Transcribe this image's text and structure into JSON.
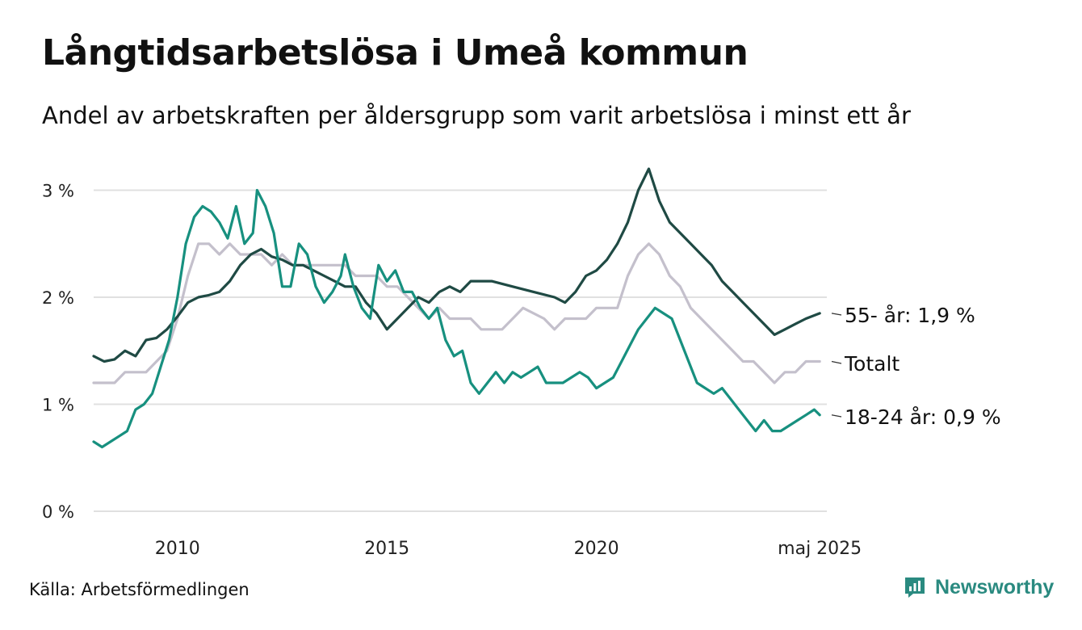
{
  "title": "Långtidsarbetslösa i Umeå kommun",
  "subtitle": "Andel av arbetskraften per åldersgrupp som varit arbetslösa i minst ett år",
  "source": "Källa: Arbetsförmedlingen",
  "brand": "Newsworthy",
  "colors": {
    "s55": "#1f4a44",
    "total": "#c4c0cc",
    "s1824": "#17907f",
    "grid": "#e0e0e0",
    "brand": "#2a8a80"
  },
  "chart_data": {
    "type": "line",
    "xlim": [
      2008.0,
      2025.5
    ],
    "ylim": [
      0,
      3.2
    ],
    "y_ticks": [
      {
        "value": 0,
        "label": "0 %"
      },
      {
        "value": 1,
        "label": "1 %"
      },
      {
        "value": 2,
        "label": "2 %"
      },
      {
        "value": 3,
        "label": "3 %"
      }
    ],
    "x_ticks": [
      {
        "value": 2010,
        "label": "2010"
      },
      {
        "value": 2015,
        "label": "2015"
      },
      {
        "value": 2020,
        "label": "2020"
      },
      {
        "value": 2025.33,
        "label": "maj 2025"
      }
    ],
    "grid": true,
    "series": [
      {
        "key": "s55",
        "name": "55- år",
        "end_label": "55- år: 1,9 %",
        "points": [
          [
            2008.0,
            1.45
          ],
          [
            2008.25,
            1.4
          ],
          [
            2008.5,
            1.42
          ],
          [
            2008.75,
            1.5
          ],
          [
            2009.0,
            1.45
          ],
          [
            2009.25,
            1.6
          ],
          [
            2009.5,
            1.62
          ],
          [
            2009.75,
            1.7
          ],
          [
            2010.0,
            1.82
          ],
          [
            2010.25,
            1.95
          ],
          [
            2010.5,
            2.0
          ],
          [
            2010.75,
            2.02
          ],
          [
            2011.0,
            2.05
          ],
          [
            2011.25,
            2.15
          ],
          [
            2011.5,
            2.3
          ],
          [
            2011.75,
            2.4
          ],
          [
            2012.0,
            2.45
          ],
          [
            2012.25,
            2.38
          ],
          [
            2012.5,
            2.35
          ],
          [
            2012.75,
            2.3
          ],
          [
            2013.0,
            2.3
          ],
          [
            2013.25,
            2.25
          ],
          [
            2013.5,
            2.2
          ],
          [
            2013.75,
            2.15
          ],
          [
            2014.0,
            2.1
          ],
          [
            2014.25,
            2.1
          ],
          [
            2014.5,
            1.95
          ],
          [
            2014.75,
            1.85
          ],
          [
            2015.0,
            1.7
          ],
          [
            2015.25,
            1.8
          ],
          [
            2015.5,
            1.9
          ],
          [
            2015.75,
            2.0
          ],
          [
            2016.0,
            1.95
          ],
          [
            2016.25,
            2.05
          ],
          [
            2016.5,
            2.1
          ],
          [
            2016.75,
            2.05
          ],
          [
            2017.0,
            2.15
          ],
          [
            2017.5,
            2.15
          ],
          [
            2018.0,
            2.1
          ],
          [
            2018.5,
            2.05
          ],
          [
            2019.0,
            2.0
          ],
          [
            2019.25,
            1.95
          ],
          [
            2019.5,
            2.05
          ],
          [
            2019.75,
            2.2
          ],
          [
            2020.0,
            2.25
          ],
          [
            2020.25,
            2.35
          ],
          [
            2020.5,
            2.5
          ],
          [
            2020.75,
            2.7
          ],
          [
            2021.0,
            3.0
          ],
          [
            2021.25,
            3.2
          ],
          [
            2021.5,
            2.9
          ],
          [
            2021.75,
            2.7
          ],
          [
            2022.0,
            2.6
          ],
          [
            2022.25,
            2.5
          ],
          [
            2022.5,
            2.4
          ],
          [
            2022.75,
            2.3
          ],
          [
            2023.0,
            2.15
          ],
          [
            2023.25,
            2.05
          ],
          [
            2023.5,
            1.95
          ],
          [
            2023.75,
            1.85
          ],
          [
            2024.0,
            1.75
          ],
          [
            2024.25,
            1.65
          ],
          [
            2024.5,
            1.7
          ],
          [
            2024.75,
            1.75
          ],
          [
            2025.0,
            1.8
          ],
          [
            2025.33,
            1.85
          ]
        ]
      },
      {
        "key": "total",
        "name": "Totalt",
        "end_label": "Totalt",
        "points": [
          [
            2008.0,
            1.2
          ],
          [
            2008.5,
            1.2
          ],
          [
            2008.75,
            1.3
          ],
          [
            2009.25,
            1.3
          ],
          [
            2009.5,
            1.4
          ],
          [
            2009.75,
            1.5
          ],
          [
            2010.0,
            1.8
          ],
          [
            2010.25,
            2.2
          ],
          [
            2010.5,
            2.5
          ],
          [
            2010.75,
            2.5
          ],
          [
            2011.0,
            2.4
          ],
          [
            2011.25,
            2.5
          ],
          [
            2011.5,
            2.4
          ],
          [
            2011.75,
            2.4
          ],
          [
            2012.0,
            2.4
          ],
          [
            2012.25,
            2.3
          ],
          [
            2012.5,
            2.4
          ],
          [
            2012.75,
            2.3
          ],
          [
            2013.0,
            2.3
          ],
          [
            2013.5,
            2.3
          ],
          [
            2014.0,
            2.3
          ],
          [
            2014.25,
            2.2
          ],
          [
            2014.5,
            2.2
          ],
          [
            2014.75,
            2.2
          ],
          [
            2015.0,
            2.1
          ],
          [
            2015.25,
            2.1
          ],
          [
            2015.5,
            2.0
          ],
          [
            2015.75,
            1.9
          ],
          [
            2016.0,
            1.8
          ],
          [
            2016.25,
            1.9
          ],
          [
            2016.5,
            1.8
          ],
          [
            2017.0,
            1.8
          ],
          [
            2017.25,
            1.7
          ],
          [
            2017.75,
            1.7
          ],
          [
            2018.0,
            1.8
          ],
          [
            2018.25,
            1.9
          ],
          [
            2018.75,
            1.8
          ],
          [
            2019.0,
            1.7
          ],
          [
            2019.25,
            1.8
          ],
          [
            2019.75,
            1.8
          ],
          [
            2020.0,
            1.9
          ],
          [
            2020.5,
            1.9
          ],
          [
            2020.75,
            2.2
          ],
          [
            2021.0,
            2.4
          ],
          [
            2021.25,
            2.5
          ],
          [
            2021.5,
            2.4
          ],
          [
            2021.75,
            2.2
          ],
          [
            2022.0,
            2.1
          ],
          [
            2022.25,
            1.9
          ],
          [
            2022.5,
            1.8
          ],
          [
            2022.75,
            1.7
          ],
          [
            2023.0,
            1.6
          ],
          [
            2023.25,
            1.5
          ],
          [
            2023.5,
            1.4
          ],
          [
            2023.75,
            1.4
          ],
          [
            2024.0,
            1.3
          ],
          [
            2024.25,
            1.2
          ],
          [
            2024.5,
            1.3
          ],
          [
            2024.75,
            1.3
          ],
          [
            2025.0,
            1.4
          ],
          [
            2025.33,
            1.4
          ]
        ]
      },
      {
        "key": "s1824",
        "name": "18-24 år",
        "end_label": "18-24 år: 0,9 %",
        "points": [
          [
            2008.0,
            0.65
          ],
          [
            2008.2,
            0.6
          ],
          [
            2008.4,
            0.65
          ],
          [
            2008.6,
            0.7
          ],
          [
            2008.8,
            0.75
          ],
          [
            2009.0,
            0.95
          ],
          [
            2009.2,
            1.0
          ],
          [
            2009.4,
            1.1
          ],
          [
            2009.6,
            1.35
          ],
          [
            2009.8,
            1.6
          ],
          [
            2010.0,
            2.0
          ],
          [
            2010.2,
            2.5
          ],
          [
            2010.4,
            2.75
          ],
          [
            2010.6,
            2.85
          ],
          [
            2010.8,
            2.8
          ],
          [
            2011.0,
            2.7
          ],
          [
            2011.2,
            2.55
          ],
          [
            2011.4,
            2.85
          ],
          [
            2011.6,
            2.5
          ],
          [
            2011.8,
            2.6
          ],
          [
            2011.9,
            3.0
          ],
          [
            2012.1,
            2.85
          ],
          [
            2012.3,
            2.6
          ],
          [
            2012.5,
            2.1
          ],
          [
            2012.7,
            2.1
          ],
          [
            2012.9,
            2.5
          ],
          [
            2013.1,
            2.4
          ],
          [
            2013.3,
            2.1
          ],
          [
            2013.5,
            1.95
          ],
          [
            2013.7,
            2.05
          ],
          [
            2013.9,
            2.2
          ],
          [
            2014.0,
            2.4
          ],
          [
            2014.2,
            2.1
          ],
          [
            2014.4,
            1.9
          ],
          [
            2014.6,
            1.8
          ],
          [
            2014.8,
            2.3
          ],
          [
            2015.0,
            2.15
          ],
          [
            2015.2,
            2.25
          ],
          [
            2015.4,
            2.05
          ],
          [
            2015.6,
            2.05
          ],
          [
            2015.8,
            1.9
          ],
          [
            2016.0,
            1.8
          ],
          [
            2016.2,
            1.9
          ],
          [
            2016.4,
            1.6
          ],
          [
            2016.6,
            1.45
          ],
          [
            2016.8,
            1.5
          ],
          [
            2017.0,
            1.2
          ],
          [
            2017.2,
            1.1
          ],
          [
            2017.4,
            1.2
          ],
          [
            2017.6,
            1.3
          ],
          [
            2017.8,
            1.2
          ],
          [
            2018.0,
            1.3
          ],
          [
            2018.2,
            1.25
          ],
          [
            2018.4,
            1.3
          ],
          [
            2018.6,
            1.35
          ],
          [
            2018.8,
            1.2
          ],
          [
            2019.0,
            1.2
          ],
          [
            2019.2,
            1.2
          ],
          [
            2019.4,
            1.25
          ],
          [
            2019.6,
            1.3
          ],
          [
            2019.8,
            1.25
          ],
          [
            2020.0,
            1.15
          ],
          [
            2020.2,
            1.2
          ],
          [
            2020.4,
            1.25
          ],
          [
            2020.6,
            1.4
          ],
          [
            2020.8,
            1.55
          ],
          [
            2021.0,
            1.7
          ],
          [
            2021.2,
            1.8
          ],
          [
            2021.4,
            1.9
          ],
          [
            2021.6,
            1.85
          ],
          [
            2021.8,
            1.8
          ],
          [
            2022.0,
            1.6
          ],
          [
            2022.2,
            1.4
          ],
          [
            2022.4,
            1.2
          ],
          [
            2022.6,
            1.15
          ],
          [
            2022.8,
            1.1
          ],
          [
            2023.0,
            1.15
          ],
          [
            2023.2,
            1.05
          ],
          [
            2023.4,
            0.95
          ],
          [
            2023.6,
            0.85
          ],
          [
            2023.8,
            0.75
          ],
          [
            2024.0,
            0.85
          ],
          [
            2024.2,
            0.75
          ],
          [
            2024.4,
            0.75
          ],
          [
            2024.6,
            0.8
          ],
          [
            2024.8,
            0.85
          ],
          [
            2025.0,
            0.9
          ],
          [
            2025.2,
            0.95
          ],
          [
            2025.33,
            0.9
          ]
        ]
      }
    ]
  }
}
